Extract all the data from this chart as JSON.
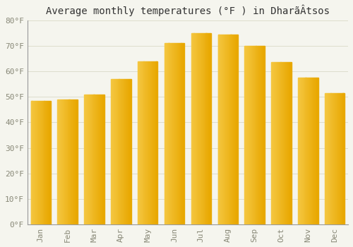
{
  "title": "Average monthly temperatures (°F ) in DharãÂtsos",
  "months": [
    "Jan",
    "Feb",
    "Mar",
    "Apr",
    "May",
    "Jun",
    "Jul",
    "Aug",
    "Sep",
    "Oct",
    "Nov",
    "Dec"
  ],
  "values": [
    48.5,
    49.0,
    51.0,
    57.0,
    64.0,
    71.0,
    75.0,
    74.5,
    70.0,
    63.5,
    57.5,
    51.5
  ],
  "bar_color_left": "#F5C842",
  "bar_color_right": "#F5A800",
  "bar_color_edge": "#E09000",
  "background_color": "#F5F5EE",
  "plot_bg_color": "#F5F5EE",
  "ylim": [
    0,
    80
  ],
  "yticks": [
    0,
    10,
    20,
    30,
    40,
    50,
    60,
    70,
    80
  ],
  "grid_color": "#DDDDCC",
  "title_fontsize": 10,
  "tick_fontsize": 8,
  "label_color": "#888877"
}
